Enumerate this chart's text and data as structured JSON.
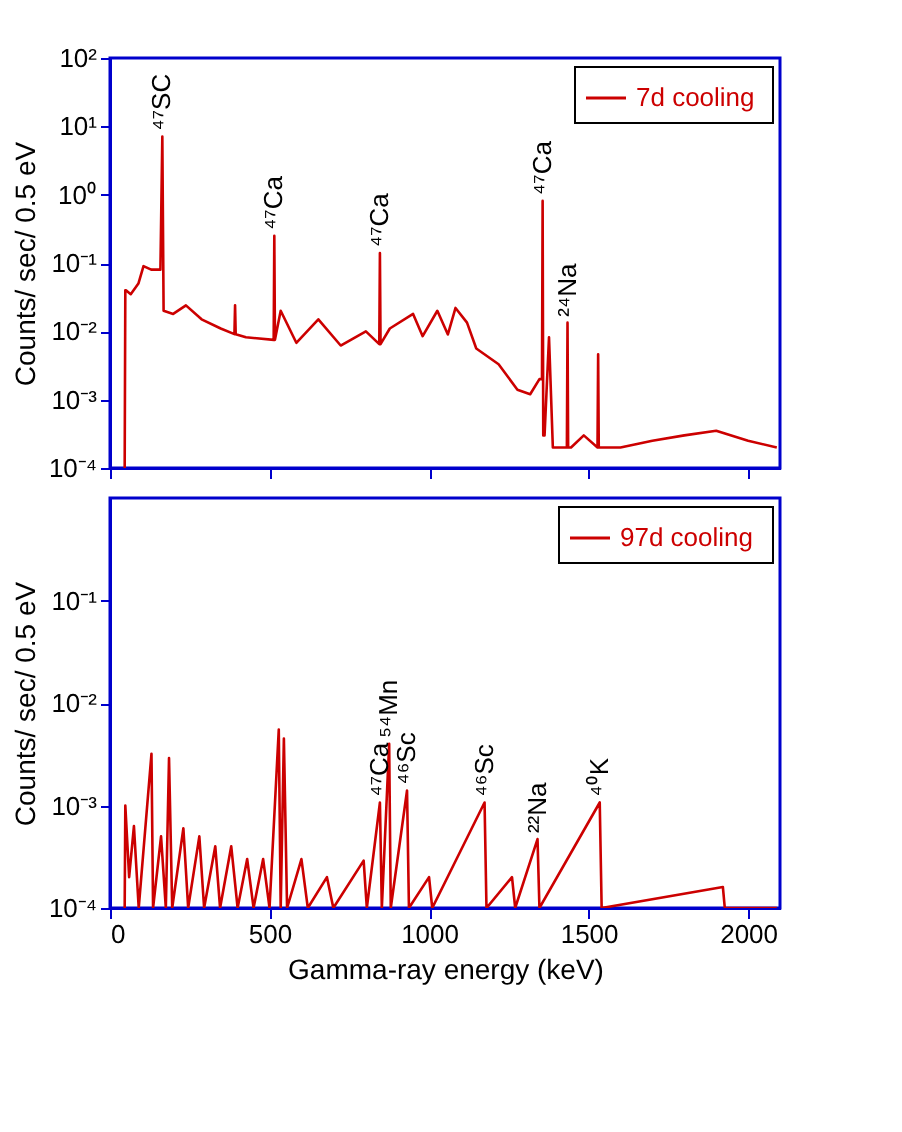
{
  "chart_data": [
    {
      "type": "line",
      "ylabel": "Counts/ sec/ 0.5 eV",
      "log": true,
      "grid": false,
      "legend": "top right",
      "tick_labels": "y",
      "line_style": "solid",
      "xlim": [
        0,
        2100
      ],
      "xticks": [
        0,
        500,
        1000,
        1500,
        2000
      ],
      "ylim": [
        0.0001,
        100
      ],
      "yticks": [
        {
          "value": 0.0001,
          "label": "10⁻⁴"
        },
        {
          "value": 0.001,
          "label": "10⁻³"
        },
        {
          "value": 0.01,
          "label": "10⁻²"
        },
        {
          "value": 0.1,
          "label": "10⁻¹"
        },
        {
          "value": 1,
          "label": "10⁰"
        },
        {
          "value": 10,
          "label": "10¹"
        },
        {
          "value": 100,
          "label": "10²"
        }
      ],
      "series": [
        {
          "name": "7d  cooling",
          "color": "#cc0000",
          "x": [
            46,
            48,
            50,
            65,
            89,
            105,
            129,
            158,
            164,
            168,
            198,
            238,
            287,
            347,
            390,
            392,
            394,
            426,
            513,
            515,
            517,
            535,
            584,
            653,
            723,
            802,
            844,
            846,
            848,
            877,
            950,
            980,
            1026,
            1059,
            1083,
            1119,
            1148,
            1218,
            1277,
            1317,
            1346,
            1354,
            1356,
            1358,
            1362,
            1376,
            1388,
            1432,
            1434,
            1436,
            1445,
            1485,
            1528,
            1530,
            1532,
            1538,
            1600,
            1700,
            1800,
            1900,
            2000,
            2090
          ],
          "values": [
            0.0001,
            0.04,
            0.04,
            0.035,
            0.05,
            0.09,
            0.08,
            0.08,
            7.1,
            0.02,
            0.018,
            0.024,
            0.015,
            0.011,
            0.0091,
            0.024,
            0.0091,
            0.0082,
            0.0075,
            0.25,
            0.0075,
            0.02,
            0.0068,
            0.015,
            0.0062,
            0.01,
            0.0065,
            0.14,
            0.0065,
            0.011,
            0.018,
            0.0085,
            0.02,
            0.009,
            0.022,
            0.0134,
            0.0056,
            0.0033,
            0.0014,
            0.0012,
            0.002,
            0.002,
            0.81,
            0.0003,
            0.0003,
            0.0082,
            0.0002,
            0.0002,
            0.0134,
            0.0002,
            0.0002,
            0.0003,
            0.0002,
            0.0046,
            0.0002,
            0.0002,
            0.0002,
            0.00025,
            0.0003,
            0.00035,
            0.00025,
            0.0002
          ]
        }
      ],
      "annotations": [
        {
          "text": "⁴⁷SC",
          "x": 164,
          "y": 7.1
        },
        {
          "text": "⁴⁷Ca",
          "x": 515,
          "y": 0.25
        },
        {
          "text": "⁴⁷Ca",
          "x": 846,
          "y": 0.14
        },
        {
          "text": "⁴⁷Ca",
          "x": 1356,
          "y": 0.81
        },
        {
          "text": "²⁴Na",
          "x": 1434,
          "y": 0.0134
        }
      ]
    },
    {
      "type": "line",
      "ylabel": "Counts/ sec/ 0.5 eV",
      "xlabel": "Gamma-ray  energy (keV)",
      "log": true,
      "grid": false,
      "legend": "top right",
      "line_style": "solid",
      "xlim": [
        0,
        2100
      ],
      "xticks": [
        0,
        500,
        1000,
        1500,
        2000
      ],
      "ylim": [
        0.0001,
        1
      ],
      "yticks": [
        {
          "value": 0.0001,
          "label": "10⁻⁴"
        },
        {
          "value": 0.001,
          "label": "10⁻³"
        },
        {
          "value": 0.01,
          "label": "10⁻²"
        },
        {
          "value": 0.1,
          "label": "10⁻¹"
        }
      ],
      "series": [
        {
          "name": "97d  cooling",
          "color": "#cc0000",
          "x": [
            46,
            48,
            60,
            75,
            90,
            130,
            135,
            160,
            175,
            185,
            195,
            230,
            245,
            280,
            295,
            330,
            345,
            380,
            400,
            430,
            450,
            480,
            500,
            529,
            535,
            545,
            555,
            600,
            620,
            680,
            700,
            795,
            805,
            846,
            852,
            875,
            880,
            931,
            937,
            1000,
            1010,
            1174,
            1180,
            1260,
            1270,
            1340,
            1346,
            1535,
            1541,
            1921,
            1927,
            2090
          ],
          "values": [
            0.0001,
            0.001,
            0.0002,
            0.00063,
            0.0001,
            0.0032,
            0.0001,
            0.0005,
            0.0001,
            0.0029,
            0.0001,
            0.0006,
            0.0001,
            0.0005,
            0.0001,
            0.0004,
            0.0001,
            0.0004,
            0.0001,
            0.0003,
            0.0001,
            0.0003,
            0.0001,
            0.0055,
            0.0001,
            0.0045,
            0.0001,
            0.0003,
            0.0001,
            0.0002,
            0.0001,
            0.00029,
            0.0001,
            0.00107,
            0.0001,
            0.004,
            0.0001,
            0.0014,
            0.0001,
            0.0002,
            0.0001,
            0.00107,
            0.0001,
            0.0002,
            0.0001,
            0.00047,
            0.0001,
            0.00107,
            0.0001,
            0.00016,
            0.0001,
            0.0001
          ]
        }
      ],
      "annotations": [
        {
          "text": "⁴⁷Ca",
          "x": 846,
          "y": 0.00107
        },
        {
          "text": "⁵⁴Mn",
          "x": 875,
          "y": 0.004
        },
        {
          "text": "⁴⁶Sc",
          "x": 931,
          "y": 0.0014
        },
        {
          "text": "⁴⁶Sc",
          "x": 1174,
          "y": 0.00107
        },
        {
          "text": "²²Na",
          "x": 1340,
          "y": 0.00047
        },
        {
          "text": "⁴⁰K",
          "x": 1535,
          "y": 0.00107
        }
      ]
    }
  ]
}
